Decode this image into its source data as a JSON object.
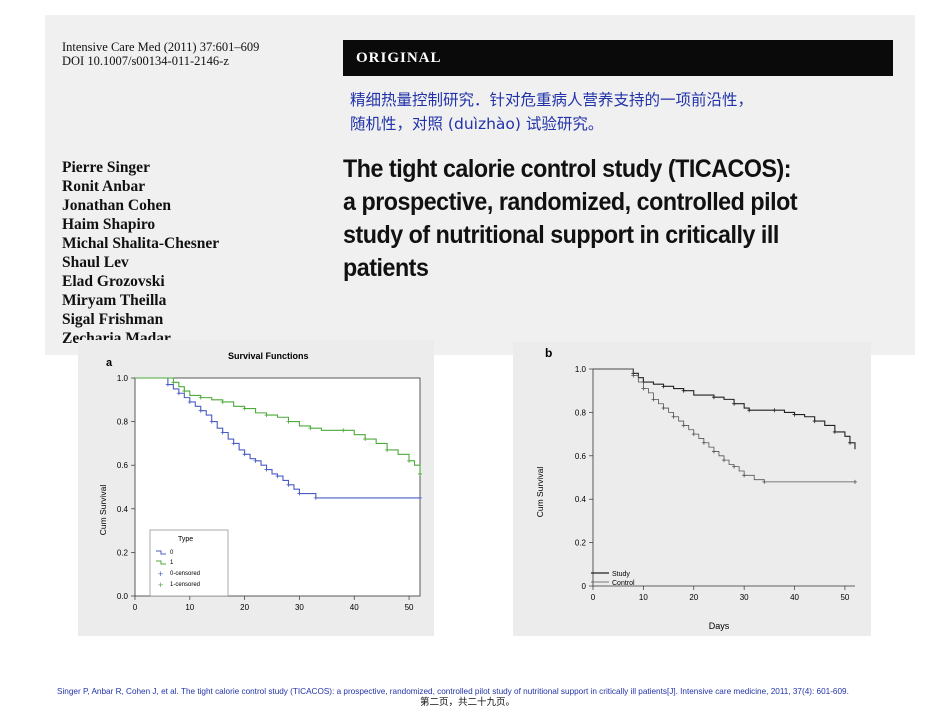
{
  "journal": {
    "line1": "Intensive Care Med (2011) 37:601–609",
    "line2": "DOI 10.1007/s00134-011-2146-z",
    "section": "ORIGINAL"
  },
  "chinese_note": {
    "line1": "精细热量控制研究．针对危重病人营养支持的一项前沿性，",
    "line2": "随机性，对照 (duìzhào) 试验研究。"
  },
  "authors": [
    "Pierre Singer",
    "Ronit Anbar",
    "Jonathan Cohen",
    "Haim Shapiro",
    "Michal Shalita-Chesner",
    "Shaul Lev",
    "Elad Grozovski",
    "Miryam Theilla",
    "Sigal Frishman",
    "Zecharia Madar"
  ],
  "title": {
    "line1": "The tight calorie control study (TICACOS):",
    "line2": "a prospective, randomized, controlled pilot",
    "line3": "study of nutritional support in critically ill",
    "line4": "patients"
  },
  "chart_data": [
    {
      "type": "line",
      "panel": "a",
      "title": "Survival Functions",
      "xlabel": "",
      "ylabel": "Cum Survival",
      "xlim": [
        0,
        52
      ],
      "ylim": [
        0,
        1.0
      ],
      "xticks": [
        "0",
        "10",
        "20",
        "30",
        "40",
        "50"
      ],
      "yticks": [
        "0.0",
        "0.2",
        "0.4",
        "0.6",
        "0.8",
        "1.0"
      ],
      "legend": {
        "title": "Type",
        "position": "bottom-left",
        "entries": [
          "0",
          "1",
          "0-censored",
          "1-censored"
        ]
      },
      "series": [
        {
          "name": "0",
          "color": "#4a5cc4",
          "x": [
            0,
            4,
            6,
            7,
            8,
            9,
            10,
            11,
            12,
            13,
            14,
            15,
            16,
            17,
            18,
            19,
            20,
            21,
            22,
            23,
            24,
            25,
            26,
            27,
            28,
            29,
            30,
            31,
            33,
            40,
            52
          ],
          "y": [
            1.0,
            1.0,
            0.97,
            0.95,
            0.93,
            0.91,
            0.89,
            0.87,
            0.85,
            0.83,
            0.8,
            0.77,
            0.75,
            0.72,
            0.7,
            0.67,
            0.65,
            0.63,
            0.62,
            0.6,
            0.58,
            0.56,
            0.55,
            0.53,
            0.51,
            0.49,
            0.47,
            0.47,
            0.45,
            0.45,
            0.45
          ]
        },
        {
          "name": "1",
          "color": "#4caa3a",
          "x": [
            0,
            6,
            7,
            8,
            9,
            10,
            12,
            14,
            16,
            18,
            20,
            22,
            24,
            26,
            28,
            30,
            32,
            34,
            38,
            40,
            42,
            44,
            46,
            48,
            50,
            51,
            52
          ],
          "y": [
            1.0,
            1.0,
            0.98,
            0.96,
            0.94,
            0.92,
            0.91,
            0.9,
            0.89,
            0.87,
            0.86,
            0.84,
            0.83,
            0.82,
            0.8,
            0.78,
            0.77,
            0.76,
            0.76,
            0.74,
            0.72,
            0.7,
            0.67,
            0.65,
            0.62,
            0.6,
            0.56
          ]
        }
      ]
    },
    {
      "type": "line",
      "panel": "b",
      "title": "",
      "xlabel": "Days",
      "ylabel": "Cum Survival",
      "xlim": [
        0,
        52
      ],
      "ylim": [
        0,
        1.0
      ],
      "xticks": [
        "0",
        "10",
        "20",
        "30",
        "40",
        "50"
      ],
      "yticks": [
        "0",
        "0.2",
        "0.4",
        "0.6",
        "0.8",
        "1.0"
      ],
      "legend": {
        "position": "bottom-left",
        "entries": [
          "Study",
          "Control"
        ]
      },
      "series": [
        {
          "name": "Study",
          "color": "#222222",
          "x": [
            0,
            6,
            8,
            9,
            10,
            12,
            14,
            16,
            18,
            20,
            24,
            26,
            28,
            30,
            31,
            34,
            36,
            38,
            40,
            42,
            44,
            46,
            48,
            50,
            51,
            52
          ],
          "y": [
            1.0,
            1.0,
            0.98,
            0.96,
            0.94,
            0.93,
            0.92,
            0.91,
            0.9,
            0.88,
            0.87,
            0.86,
            0.84,
            0.82,
            0.81,
            0.81,
            0.81,
            0.8,
            0.79,
            0.78,
            0.76,
            0.74,
            0.71,
            0.69,
            0.66,
            0.63
          ]
        },
        {
          "name": "Control",
          "color": "#222222",
          "x": [
            0,
            7,
            8,
            9,
            10,
            11,
            12,
            13,
            14,
            15,
            16,
            17,
            18,
            19,
            20,
            21,
            22,
            23,
            24,
            25,
            26,
            27,
            28,
            29,
            30,
            32,
            34,
            38,
            52
          ],
          "y": [
            1.0,
            1.0,
            0.97,
            0.94,
            0.91,
            0.89,
            0.86,
            0.84,
            0.82,
            0.8,
            0.78,
            0.76,
            0.74,
            0.72,
            0.7,
            0.68,
            0.66,
            0.64,
            0.62,
            0.6,
            0.58,
            0.56,
            0.55,
            0.53,
            0.51,
            0.49,
            0.48,
            0.48,
            0.48
          ]
        }
      ]
    }
  ],
  "citation": "Singer P, Anbar R, Cohen J, et al. The tight calorie control study (TICACOS): a prospective, randomized, controlled pilot study of nutritional support in critically ill patients[J]. Intensive care medicine, 2011, 37(4): 601-609.",
  "page_number": "第二页，共二十九页。"
}
